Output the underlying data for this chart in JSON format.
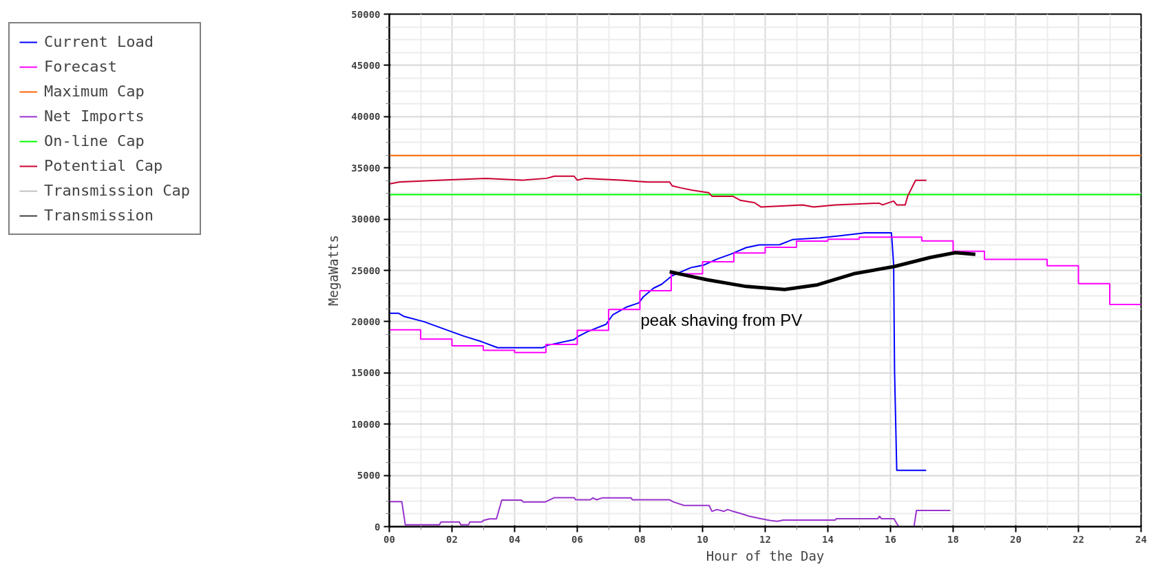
{
  "chart_data": {
    "type": "line",
    "xlabel": "Hour of the Day",
    "ylabel": "MegaWatts",
    "xlim": [
      0,
      24
    ],
    "ylim": [
      0,
      50000
    ],
    "xticks": [
      {
        "value": 0,
        "label": "00"
      },
      {
        "value": 2,
        "label": "02"
      },
      {
        "value": 4,
        "label": "04"
      },
      {
        "value": 6,
        "label": "06"
      },
      {
        "value": 8,
        "label": "08"
      },
      10,
      12,
      14,
      16,
      18,
      20,
      22,
      24
    ],
    "yticks": [
      0,
      5000,
      10000,
      15000,
      20000,
      25000,
      30000,
      35000,
      40000,
      45000,
      50000
    ],
    "grid": true,
    "legend": "left",
    "marker": "none",
    "line_style": "solid",
    "series": [
      {
        "name": "Current Load",
        "color": "#0000ff",
        "x": [
          0,
          0.3,
          0.46,
          1.1,
          1.69,
          2.36,
          2.95,
          3.46,
          4.9,
          5.06,
          5.9,
          6.03,
          6.33,
          6.92,
          7.13,
          7.59,
          7.97,
          8.1,
          8.44,
          8.69,
          9.03,
          9.62,
          10.04,
          10.46,
          10.89,
          11.39,
          11.81,
          12.46,
          12.87,
          13.75,
          14.39,
          15.19,
          16.03,
          16.05,
          16.1,
          16.13,
          16.2,
          17.14
        ],
        "values": [
          20810,
          20810,
          20520,
          20000,
          19350,
          18610,
          18040,
          17460,
          17460,
          17700,
          18250,
          18560,
          19030,
          19740,
          20650,
          21440,
          21830,
          22390,
          23270,
          23640,
          24480,
          25260,
          25520,
          26100,
          26570,
          27220,
          27480,
          27500,
          28000,
          28170,
          28370,
          28660,
          28660,
          27800,
          25570,
          15130,
          5500,
          5500
        ]
      },
      {
        "name": "Forecast",
        "color": "#ff00ff",
        "type": "step",
        "x": [
          0,
          1,
          2,
          3,
          4,
          5,
          6,
          7,
          8,
          9,
          10,
          11,
          12,
          13,
          14,
          15,
          16,
          17,
          18,
          19,
          20,
          21,
          22,
          23,
          24
        ],
        "values": [
          19210,
          18300,
          17640,
          17200,
          16990,
          17770,
          19160,
          21180,
          23010,
          24660,
          25840,
          26700,
          27250,
          27850,
          28040,
          28240,
          28240,
          27870,
          26860,
          26070,
          26070,
          25450,
          23710,
          21680,
          21680
        ]
      },
      {
        "name": "Maximum Cap",
        "color": "#ff6600",
        "x": [
          0,
          24
        ],
        "values": [
          36200,
          36200
        ]
      },
      {
        "name": "Net Imports",
        "color": "#9933cc",
        "x": [
          0,
          0.4,
          0.51,
          1.6,
          1.65,
          2.24,
          2.28,
          2.53,
          2.57,
          2.95,
          3.0,
          3.2,
          3.42,
          3.59,
          4.22,
          4.27,
          4.98,
          5.27,
          5.9,
          5.95,
          6.41,
          6.5,
          6.62,
          6.79,
          7.72,
          7.76,
          8.95,
          9.07,
          9.41,
          10.21,
          10.3,
          10.46,
          10.68,
          10.8,
          10.97,
          11.22,
          11.48,
          11.81,
          12.15,
          12.38,
          12.58,
          14.23,
          14.27,
          15.59,
          15.65,
          15.71,
          16.11,
          16.23,
          16.28,
          16.5,
          16.75,
          16.83,
          17.91
        ],
        "values": [
          2430,
          2430,
          180,
          180,
          450,
          450,
          180,
          180,
          450,
          450,
          600,
          760,
          760,
          2590,
          2590,
          2410,
          2410,
          2830,
          2830,
          2620,
          2620,
          2800,
          2620,
          2800,
          2800,
          2620,
          2620,
          2410,
          2070,
          2070,
          1490,
          1670,
          1490,
          1670,
          1490,
          1280,
          1020,
          810,
          600,
          520,
          640,
          640,
          770,
          770,
          1010,
          770,
          770,
          150,
          0,
          null,
          0,
          1580,
          1580
        ]
      },
      {
        "name": "On-line Cap",
        "color": "#00ff00",
        "x": [
          0,
          24
        ],
        "values": [
          32400,
          32400
        ]
      },
      {
        "name": "Potential Cap",
        "color": "#cc0033",
        "x": [
          0,
          0.32,
          1.65,
          3.08,
          4.24,
          5.02,
          5.27,
          5.9,
          6.0,
          6.25,
          7.4,
          8.23,
          8.95,
          9.03,
          9.32,
          9.66,
          10.2,
          10.3,
          10.97,
          11.2,
          11.66,
          11.86,
          13.19,
          13.55,
          14.23,
          15.63,
          15.75,
          16.1,
          16.2,
          16.47,
          16.55,
          16.8,
          17.15
        ],
        "values": [
          33430,
          33620,
          33800,
          33980,
          33800,
          33980,
          34190,
          34190,
          33800,
          33980,
          33800,
          33620,
          33620,
          33250,
          33040,
          32830,
          32570,
          32230,
          32230,
          31840,
          31600,
          31190,
          31390,
          31190,
          31390,
          31560,
          31390,
          31760,
          31390,
          31390,
          32250,
          33790,
          33790
        ]
      },
      {
        "name": "Transmission Cap",
        "color": "#c0c0c0"
      },
      {
        "name": "Transmission",
        "color": "#404040"
      },
      {
        "color": "#000000",
        "x": [
          8.95,
          10.13,
          11.39,
          12.62,
          13.67,
          14.87,
          16.11,
          17.27,
          18.07,
          18.71
        ],
        "values": [
          24870,
          24090,
          23430,
          23140,
          23590,
          24700,
          25370,
          26260,
          26730,
          26560
        ]
      }
    ],
    "annotations": [
      "peak shaving from PV"
    ]
  }
}
